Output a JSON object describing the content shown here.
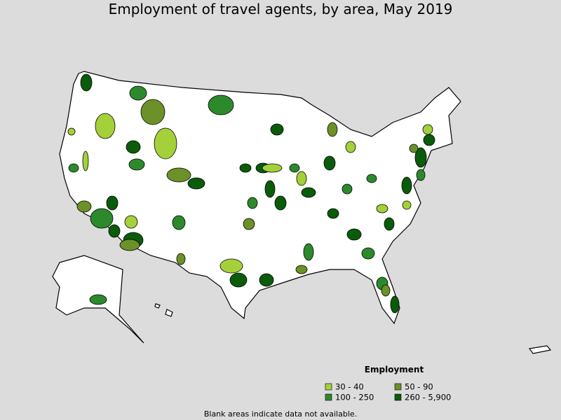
{
  "title": "Employment of travel agents, by area, May 2019",
  "legend": {
    "title": "Employment",
    "items": [
      {
        "label": "30 - 40",
        "color": "#a4d03a"
      },
      {
        "label": "50 - 90",
        "color": "#6b9128"
      },
      {
        "label": "100 - 250",
        "color": "#2c8a2c"
      },
      {
        "label": "260 - 5,900",
        "color": "#0a5c0a"
      }
    ]
  },
  "footnote": "Blank areas indicate data not available."
}
